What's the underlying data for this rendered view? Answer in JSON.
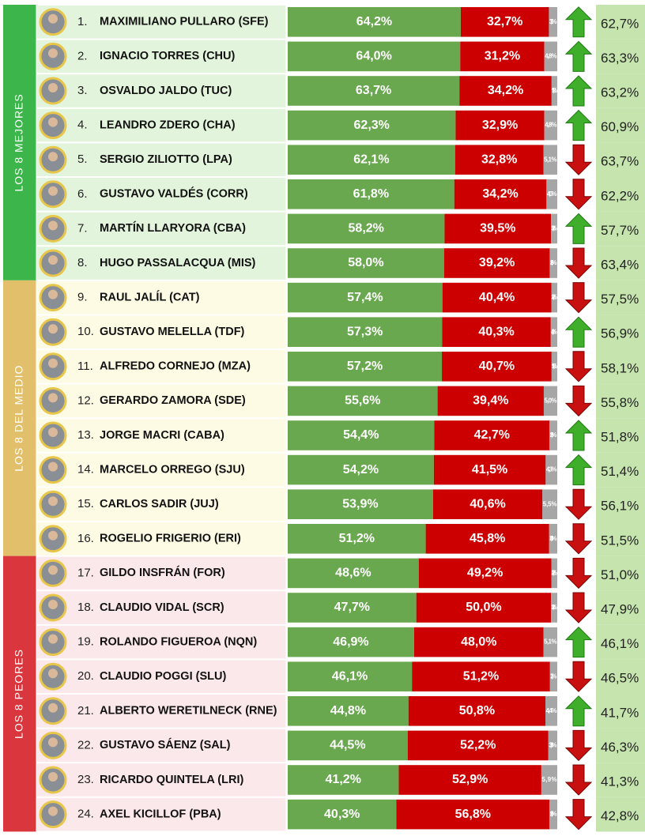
{
  "chart_data": {
    "type": "bar",
    "stacked": true,
    "orientation": "horizontal",
    "xlim": [
      0,
      100
    ],
    "ranks": [
      "1.",
      "2.",
      "3.",
      "4.",
      "5.",
      "6.",
      "7.",
      "8.",
      "9.",
      "10.",
      "11.",
      "12.",
      "13.",
      "14.",
      "15.",
      "16.",
      "17.",
      "18.",
      "19.",
      "20.",
      "21.",
      "22.",
      "23.",
      "24."
    ],
    "categories": [
      "MAXIMILIANO PULLARO (SFE)",
      "IGNACIO TORRES (CHU)",
      "OSVALDO JALDO (TUC)",
      "LEANDRO ZDERO (CHA)",
      "SERGIO ZILIOTTO (LPA)",
      "GUSTAVO VALDÉS (CORR)",
      "MARTÍN LLARYORA (CBA)",
      "HUGO PASSALACQUA (MIS)",
      "RAUL JALÍL (CAT)",
      "GUSTAVO MELELLA (TDF)",
      "ALFREDO CORNEJO (MZA)",
      "GERARDO ZAMORA (SDE)",
      "JORGE MACRI (CABA)",
      "MARCELO ORREGO (SJU)",
      "CARLOS SADIR (JUJ)",
      "ROGELIO FRIGERIO (ERI)",
      "GILDO INSFRÁN (FOR)",
      "CLAUDIO VIDAL (SCR)",
      "ROLANDO FIGUEROA (NQN)",
      "CLAUDIO POGGI (SLU)",
      "ALBERTO WERETILNECK (RNE)",
      "GUSTAVO SÁENZ (SAL)",
      "RICARDO QUINTELA (LRI)",
      "AXEL KICILLOF (PBA)"
    ],
    "series": [
      {
        "color": "#6aa84f",
        "values": [
          64.2,
          64.0,
          63.7,
          62.3,
          62.1,
          61.8,
          58.2,
          58.0,
          57.4,
          57.3,
          57.2,
          55.6,
          54.4,
          54.2,
          53.9,
          51.2,
          48.6,
          47.7,
          46.9,
          46.1,
          44.8,
          44.5,
          41.2,
          40.3
        ],
        "value_labels": [
          "64,2%",
          "64,0%",
          "63,7%",
          "62,3%",
          "62,1%",
          "61,8%",
          "58,2%",
          "58,0%",
          "57,4%",
          "57,3%",
          "57,2%",
          "55,6%",
          "54,4%",
          "54,2%",
          "53,9%",
          "51,2%",
          "48,6%",
          "47,7%",
          "46,9%",
          "46,1%",
          "44,8%",
          "44,5%",
          "41,2%",
          "40,3%"
        ]
      },
      {
        "color": "#cc0000",
        "values": [
          32.7,
          31.2,
          34.2,
          32.9,
          32.8,
          34.2,
          39.5,
          39.2,
          40.4,
          40.3,
          40.7,
          39.4,
          42.7,
          41.5,
          40.6,
          45.8,
          49.2,
          50.0,
          48.0,
          51.2,
          50.8,
          52.2,
          52.9,
          56.8
        ],
        "value_labels": [
          "32,7%",
          "31,2%",
          "34,2%",
          "32,9%",
          "32,8%",
          "34,2%",
          "39,5%",
          "39,2%",
          "40,4%",
          "40,3%",
          "40,7%",
          "39,4%",
          "42,7%",
          "41,5%",
          "40,6%",
          "45,8%",
          "49,2%",
          "50,0%",
          "48,0%",
          "51,2%",
          "50,8%",
          "52,2%",
          "52,9%",
          "56,8%"
        ]
      },
      {
        "color": "#a6a6a6",
        "values": [
          3.1,
          4.8,
          2.1,
          4.8,
          5.1,
          4.0,
          2.3,
          2.8,
          2.2,
          2.4,
          2.1,
          5.0,
          2.9,
          4.3,
          5.5,
          3.0,
          2.2,
          2.3,
          5.1,
          2.7,
          4.4,
          3.3,
          5.9,
          2.9
        ],
        "value_labels": [
          "3,1%",
          "4,8%",
          "2,1%",
          "4,8%",
          "5,1%",
          "4,0%",
          "2,3%",
          "2,8%",
          "2,2%",
          "2,4%",
          "2,1%",
          "5,0%",
          "2,9%",
          "4,3%",
          "5,5%",
          "3,0%",
          "2,2%",
          "2,3%",
          "5,1%",
          "2,7%",
          "4,4%",
          "3,3%",
          "5,9%",
          "2,9%"
        ]
      }
    ],
    "trend": [
      "up",
      "up",
      "up",
      "up",
      "down",
      "down",
      "up",
      "down",
      "down",
      "up",
      "down",
      "down",
      "up",
      "up",
      "down",
      "down",
      "down",
      "down",
      "up",
      "down",
      "up",
      "down",
      "down",
      "down"
    ],
    "previous": {
      "values": [
        62.7,
        63.3,
        63.2,
        60.9,
        63.7,
        62.2,
        57.7,
        63.4,
        57.5,
        56.9,
        58.1,
        55.8,
        51.8,
        51.4,
        56.1,
        51.5,
        51.0,
        47.9,
        46.1,
        46.5,
        41.7,
        46.3,
        41.3,
        42.8
      ],
      "value_labels": [
        "62,7%",
        "63,3%",
        "63,2%",
        "60,9%",
        "63,7%",
        "62,2%",
        "57,7%",
        "63,4%",
        "57,5%",
        "56,9%",
        "58,1%",
        "55,8%",
        "51,8%",
        "51,4%",
        "56,1%",
        "51,5%",
        "51,0%",
        "47,9%",
        "46,1%",
        "46,5%",
        "41,7%",
        "46,3%",
        "41,3%",
        "42,8%"
      ]
    },
    "groups": [
      {
        "label": "LOS 8 MEJORES",
        "size": 8,
        "color": "#3cb54a",
        "row_color": "#e3f4dc"
      },
      {
        "label": "LOS 8 DEL MEDIO",
        "size": 8,
        "color": "#e2c06b",
        "row_color": "#fdfbe4"
      },
      {
        "label": "LOS 8 PEORES",
        "size": 8,
        "color": "#d9363e",
        "row_color": "#fbe8ea"
      }
    ]
  }
}
